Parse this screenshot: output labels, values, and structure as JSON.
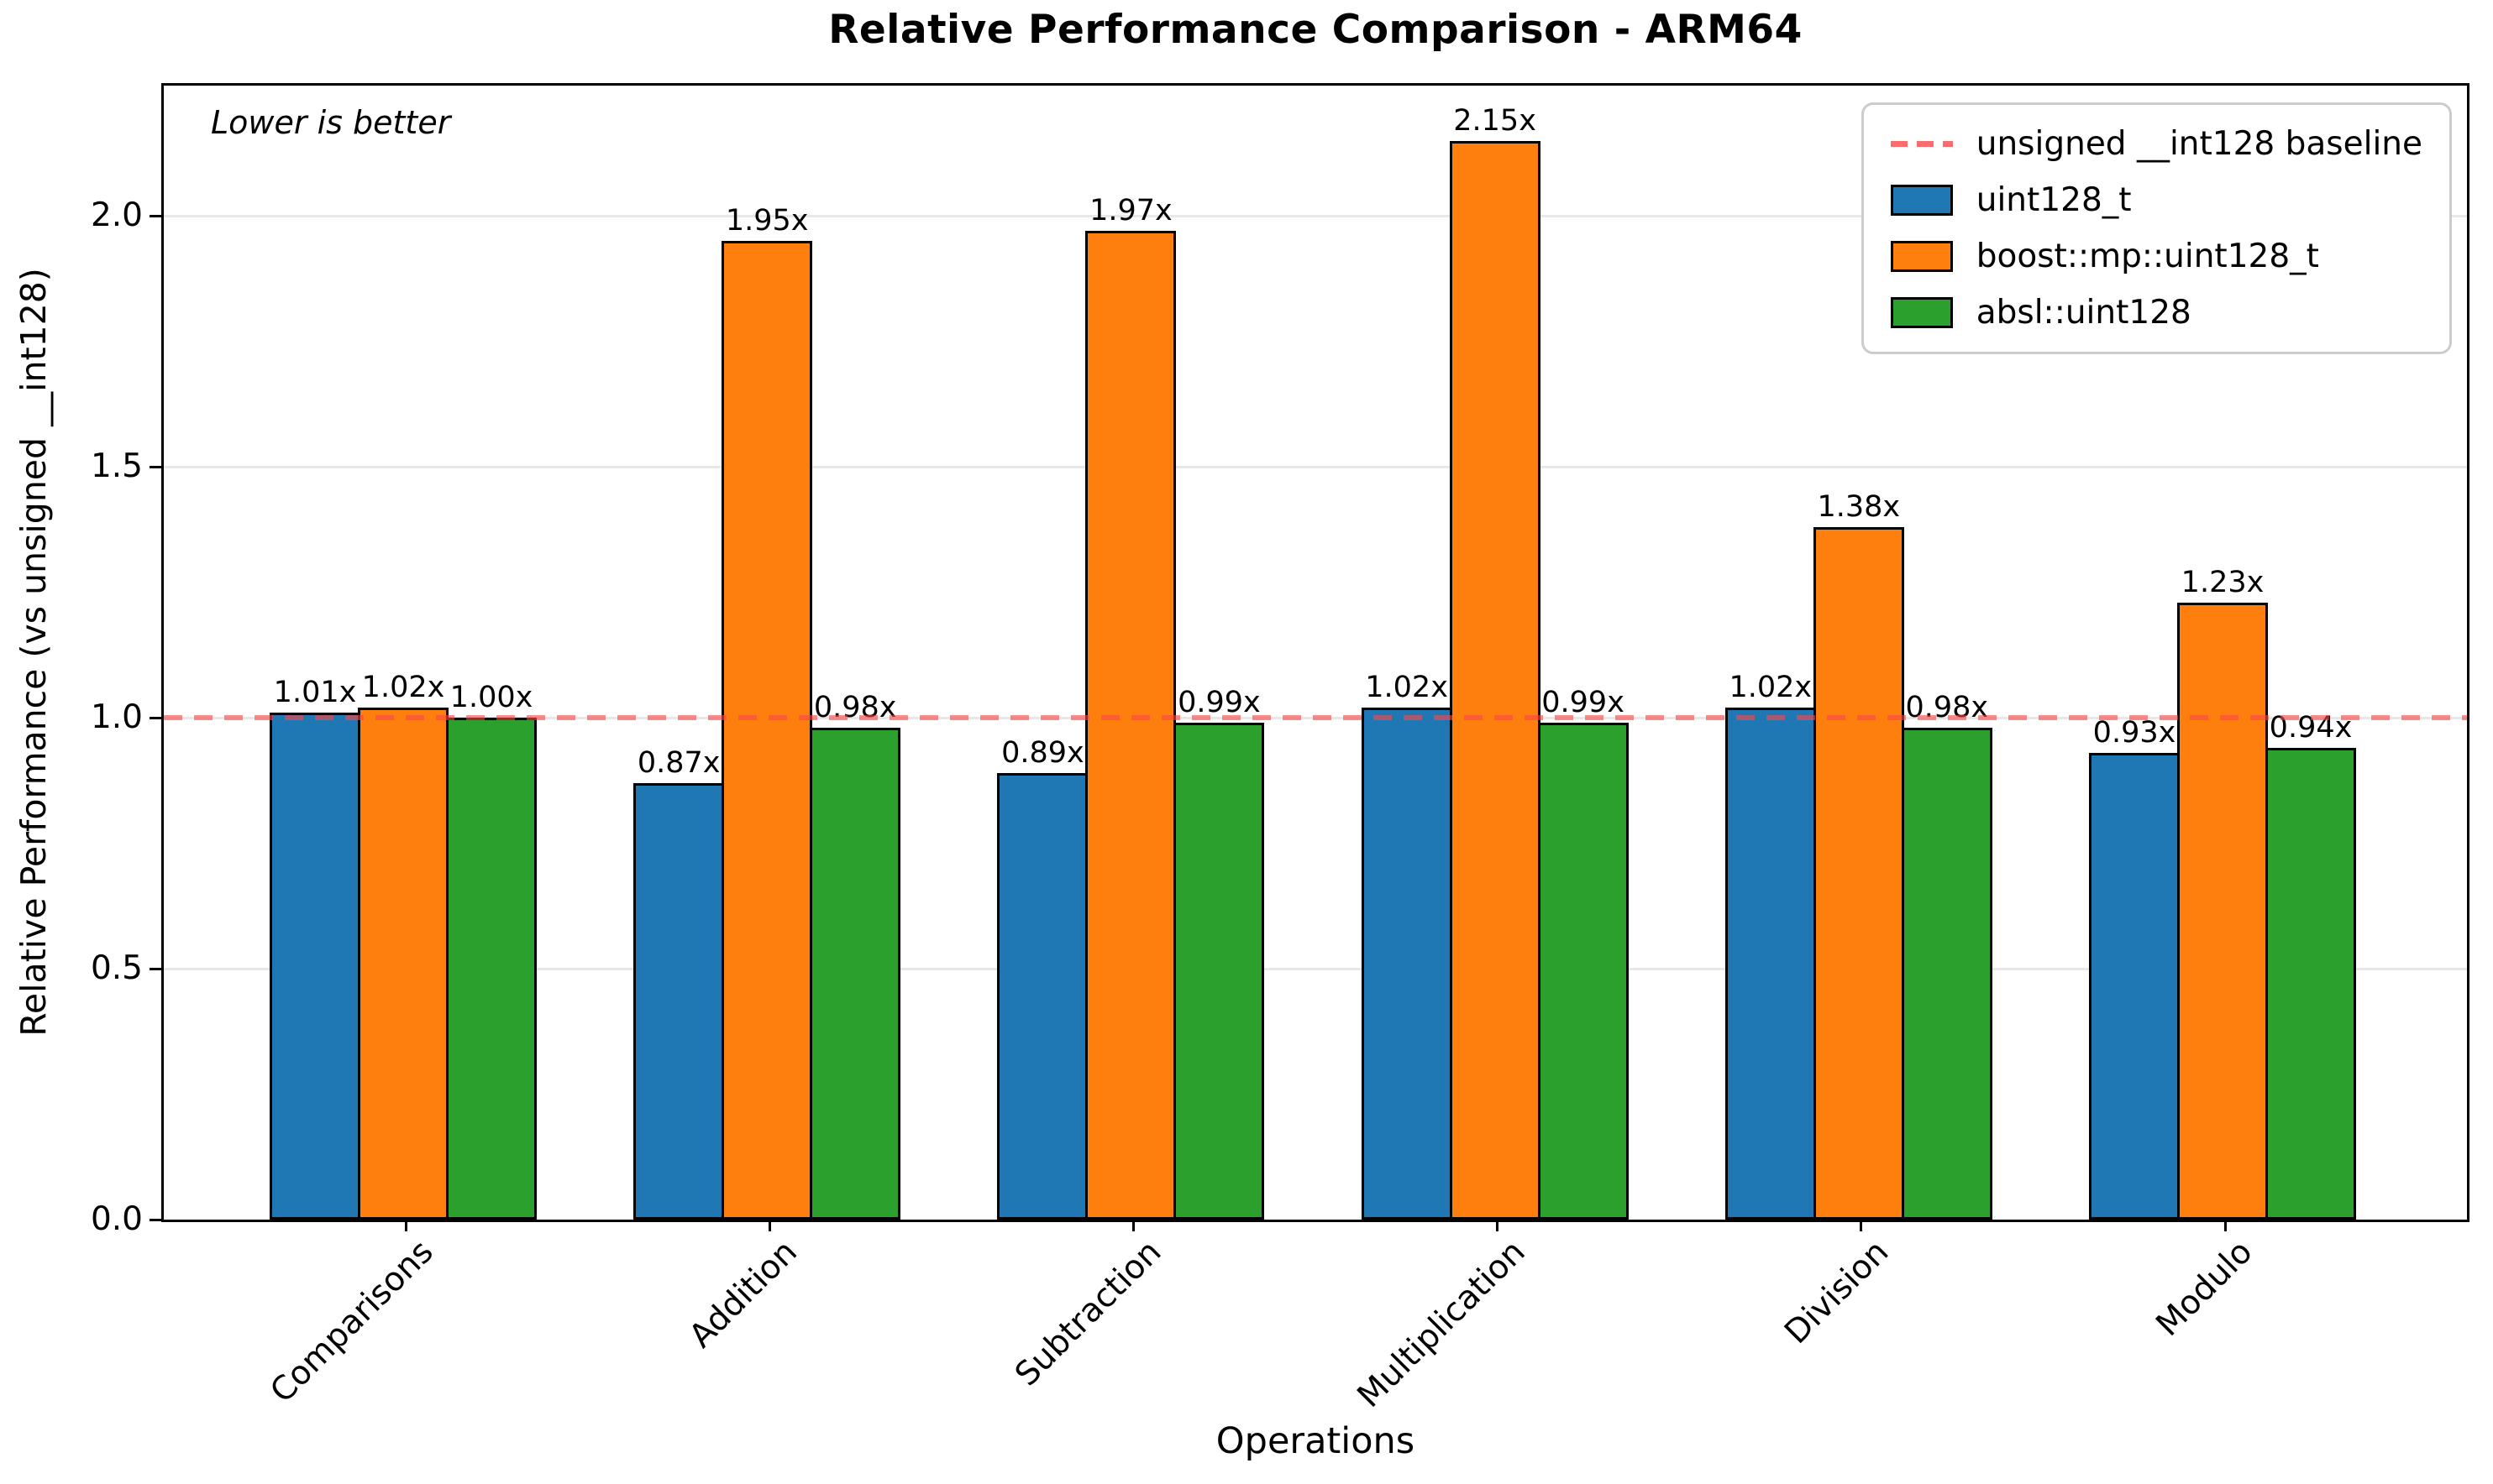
{
  "chart_data": {
    "type": "bar",
    "title": "Relative Performance Comparison - ARM64",
    "xlabel": "Operations",
    "ylabel": "Relative Performance (vs unsigned __int128)",
    "annotation": "Lower is better",
    "categories": [
      "Comparisons",
      "Addition",
      "Subtraction",
      "Multiplication",
      "Division",
      "Modulo"
    ],
    "series": [
      {
        "name": "uint128_t",
        "color": "#1f77b4",
        "values": [
          1.01,
          0.87,
          0.89,
          1.02,
          1.02,
          0.93
        ]
      },
      {
        "name": "boost::mp::uint128_t",
        "color": "#ff7f0e",
        "values": [
          1.02,
          1.95,
          1.97,
          2.15,
          1.38,
          1.23
        ]
      },
      {
        "name": "absl::uint128",
        "color": "#2ca02c",
        "values": [
          1.0,
          0.98,
          0.99,
          0.99,
          0.98,
          0.94
        ]
      }
    ],
    "baseline": {
      "value": 1.0,
      "label": "unsigned __int128 baseline",
      "color": "#fa4646",
      "style": "dashed"
    },
    "value_label_suffix": "x",
    "yticks": [
      0.0,
      0.5,
      1.0,
      1.5,
      2.0
    ],
    "ylim": [
      0,
      2.26
    ],
    "grid": true,
    "legend_position": "upper right",
    "grid_color": "#e8e8e8",
    "axis_color": "#000000"
  }
}
